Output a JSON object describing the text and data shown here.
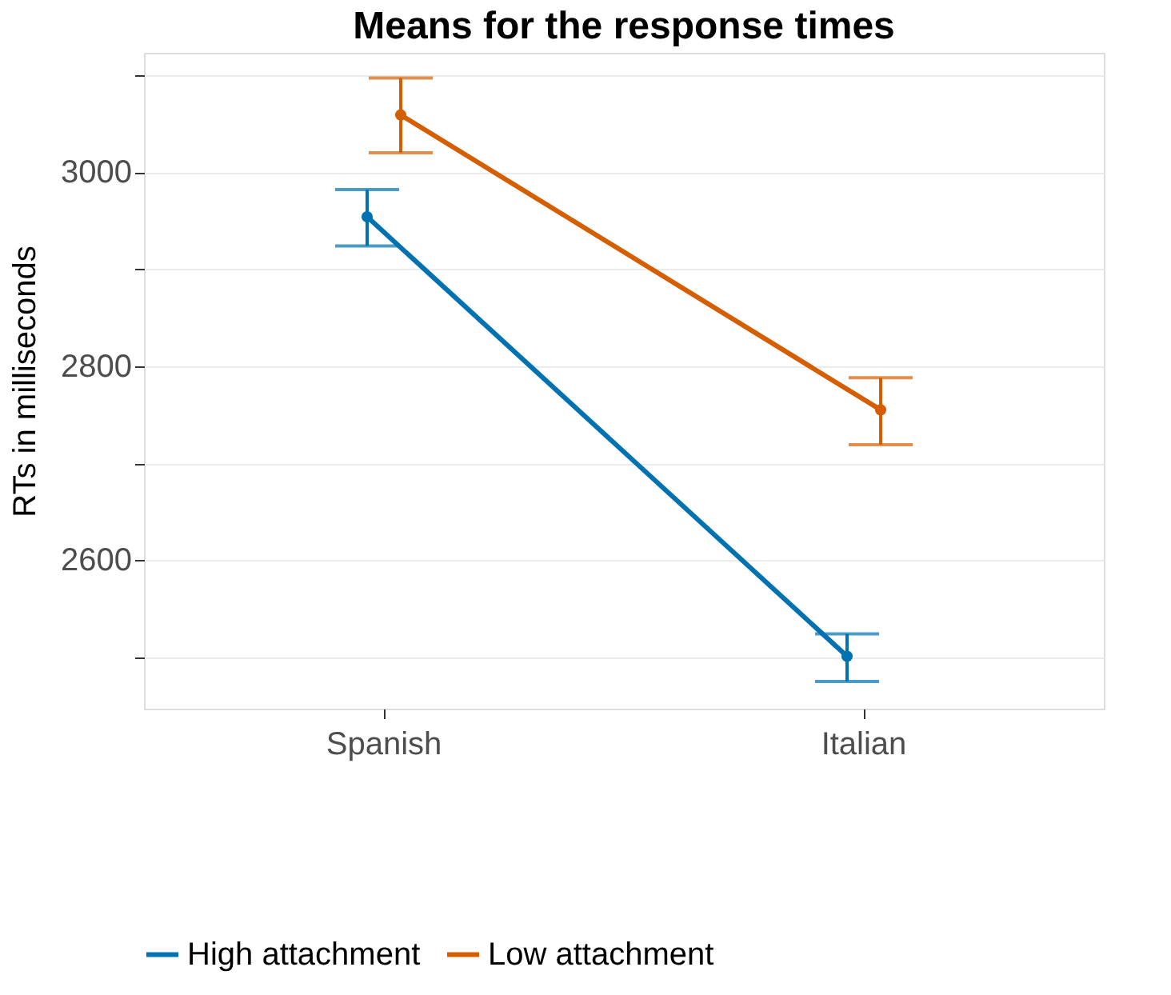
{
  "chart_data": {
    "type": "line",
    "title": "Means for the response times",
    "ylabel": "RTs in milliseconds",
    "categories": [
      "Spanish",
      "Italian"
    ],
    "series": [
      {
        "name": "High attachment",
        "color": "#0072b2",
        "values": [
          2954,
          2501
        ],
        "errors": [
          [
            2924,
            2982
          ],
          [
            2475,
            2524
          ]
        ]
      },
      {
        "name": "Low attachment",
        "color": "#d55e00",
        "values": [
          3059,
          2755
        ],
        "errors": [
          [
            3020,
            3097
          ],
          [
            2719,
            2788
          ]
        ]
      }
    ],
    "ylim": [
      2447,
      3123
    ],
    "yticks": [
      {
        "value": 2500,
        "label": null
      },
      2600,
      {
        "value": 2700,
        "label": null
      },
      2800,
      {
        "value": 2900,
        "label": null
      },
      3000,
      {
        "value": 3100,
        "label": null
      }
    ],
    "grid": "y",
    "legend": "bottom",
    "marker": "circle",
    "line_style": "solid"
  }
}
